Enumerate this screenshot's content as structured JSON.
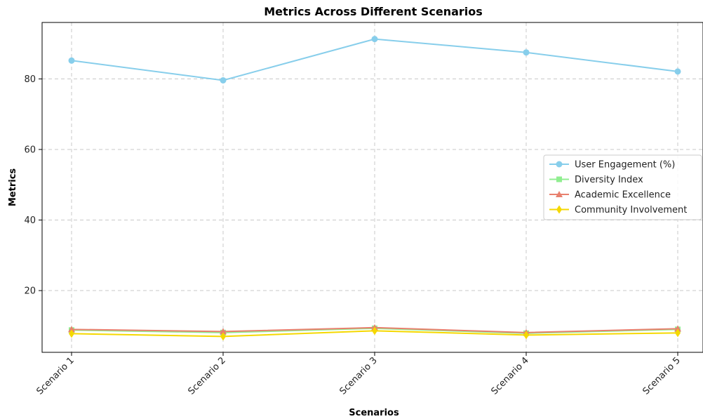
{
  "chart_data": {
    "type": "line",
    "title": "Metrics Across Different Scenarios",
    "xlabel": "Scenarios",
    "ylabel": "Metrics",
    "categories": [
      "Scenario 1",
      "Scenario 2",
      "Scenario 3",
      "Scenario 4",
      "Scenario 5"
    ],
    "ylim": [
      2.5,
      96
    ],
    "yticks": [
      20,
      40,
      60,
      80
    ],
    "grid": true,
    "legend_position": "center-right",
    "series": [
      {
        "name": "User Engagement (%)",
        "values": [
          85.2,
          79.6,
          91.3,
          87.5,
          82.1
        ],
        "color": "#87ceeb",
        "marker": "circle"
      },
      {
        "name": "Diversity Index",
        "values": [
          8.8,
          8.1,
          9.3,
          7.9,
          9.0
        ],
        "color": "#90ee90",
        "marker": "square"
      },
      {
        "name": "Academic Excellence",
        "values": [
          9.0,
          8.4,
          9.5,
          8.1,
          9.2
        ],
        "color": "#e8806e",
        "marker": "triangle"
      },
      {
        "name": "Community Involvement",
        "values": [
          7.8,
          7.0,
          8.6,
          7.4,
          8.0
        ],
        "color": "#f5d800",
        "marker": "diamond"
      }
    ]
  }
}
